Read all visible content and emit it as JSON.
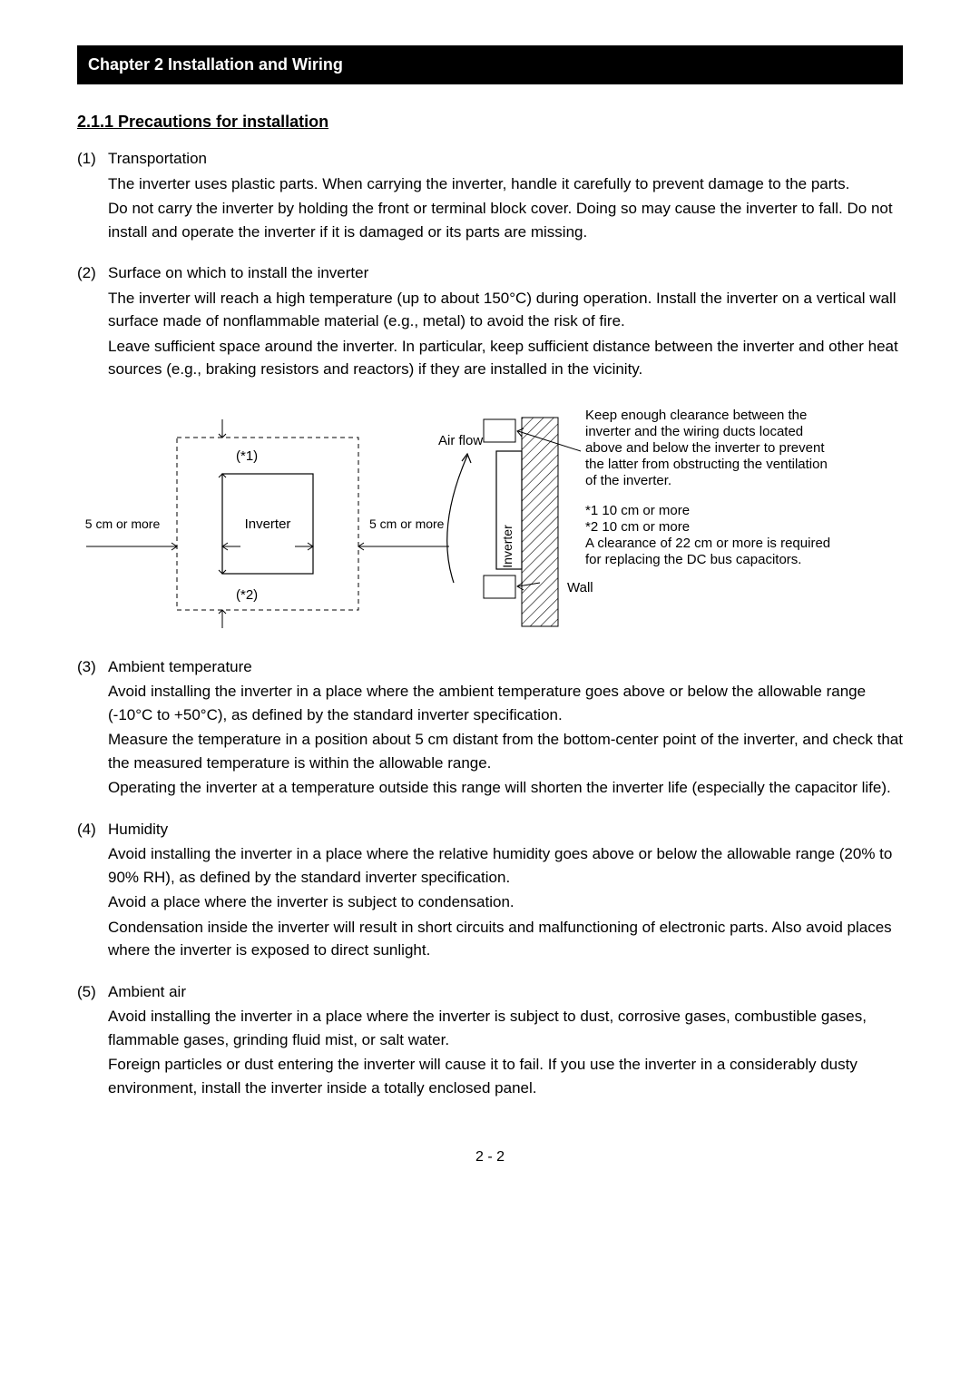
{
  "chapterHeader": "Chapter 2 Installation and Wiring",
  "sectionTitle": "2.1.1 Precautions for installation",
  "items": [
    {
      "num": "(1)",
      "title": "Transportation",
      "paras": [
        "The inverter uses plastic parts. When carrying the inverter, handle it carefully to prevent damage to the parts.",
        "Do not carry the inverter by holding the front or terminal block cover. Doing so may cause the inverter to fall. Do not install and operate the inverter if it is damaged or its parts are missing."
      ]
    },
    {
      "num": "(2)",
      "title": "Surface on which to install the inverter",
      "paras": [
        "The inverter will reach a high temperature (up to about 150°C) during operation. Install the inverter on a vertical wall surface made of nonflammable material (e.g., metal) to avoid the risk of fire.",
        "Leave sufficient space around the inverter. In particular, keep sufficient distance between the inverter and other heat sources (e.g., braking resistors and reactors) if they are installed in the vicinity."
      ]
    },
    {
      "num": "(3)",
      "title": "Ambient temperature",
      "paras": [
        "Avoid installing the inverter in a place where the ambient temperature goes above or below the allowable range (-10°C to +50°C), as defined by the standard inverter specification.",
        "Measure the temperature in a position about 5 cm distant from the bottom-center point of the inverter, and check that the measured temperature is within the allowable range.",
        "Operating the inverter at a temperature outside this range will shorten the inverter life (especially the capacitor life)."
      ]
    },
    {
      "num": "(4)",
      "title": "Humidity",
      "paras": [
        "Avoid installing the inverter in a place where the relative humidity goes above or below the allowable range (20% to 90% RH), as defined by the standard inverter specification.",
        "Avoid a place where the inverter is subject to condensation.",
        "Condensation inside the inverter will result in short circuits and malfunctioning of electronic parts. Also avoid places where the inverter is exposed to direct sunlight."
      ]
    },
    {
      "num": "(5)",
      "title": "Ambient air",
      "paras": [
        "Avoid installing the inverter in a place where the inverter is subject to dust, corrosive gases, combustible gases, flammable gases, grinding fluid mist, or salt water.",
        "Foreign particles or dust entering the inverter will cause it to fail. If you use the inverter in a considerably dusty environment, install the inverter inside a totally enclosed panel."
      ]
    }
  ],
  "diagram": {
    "leftLabel": "5 cm or more",
    "inverterLabel": "Inverter",
    "rightLabel": "5 cm or more",
    "topMark": "(*1)",
    "bottomMark": "(*2)",
    "airFlowLabel": "Air flow",
    "wallLabel": "Wall",
    "verticalInverterLabel": "Inverter",
    "noteText": [
      "Keep enough clearance between the",
      "inverter and the wiring ducts located",
      "above and below the inverter to prevent",
      "the latter from obstructing the ventilation",
      "of the inverter."
    ],
    "note2": [
      "*1 10 cm or more",
      "*2 10 cm or more",
      "A clearance of 22 cm or more is required",
      "for replacing the DC bus capacitors."
    ],
    "colors": {
      "stroke": "#000000",
      "fill": "#ffffff",
      "hatch": "#000000"
    }
  },
  "pageNum": "2 - 2"
}
